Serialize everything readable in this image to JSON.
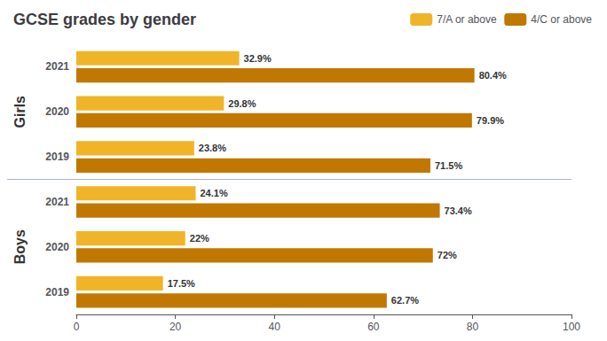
{
  "chart_data": {
    "type": "bar",
    "orientation": "horizontal",
    "title": "GCSE grades by gender",
    "categories": [
      "2021",
      "2020",
      "2019",
      "2021",
      "2020",
      "2019"
    ],
    "category_groups": [
      "Girls",
      "Girls",
      "Girls",
      "Boys",
      "Boys",
      "Boys"
    ],
    "series": [
      {
        "name": "7/A or above",
        "color": "#f0b429",
        "values": [
          32.9,
          29.8,
          23.8,
          24.1,
          22.0,
          17.5
        ],
        "value_labels": [
          "32.9%",
          "29.8%",
          "23.8%",
          "24.1%",
          "22%",
          "17.5%"
        ]
      },
      {
        "name": "4/C or above",
        "color": "#c07800",
        "values": [
          80.4,
          79.9,
          71.5,
          73.4,
          72.0,
          62.7
        ],
        "value_labels": [
          "80.4%",
          "79.9%",
          "71.5%",
          "73.4%",
          "72%",
          "62.7%"
        ]
      }
    ],
    "xlim": [
      0,
      100
    ],
    "xticks": [
      0,
      20,
      40,
      60,
      80,
      100
    ],
    "data_labels": true,
    "legend": "upper right",
    "grid": false
  }
}
